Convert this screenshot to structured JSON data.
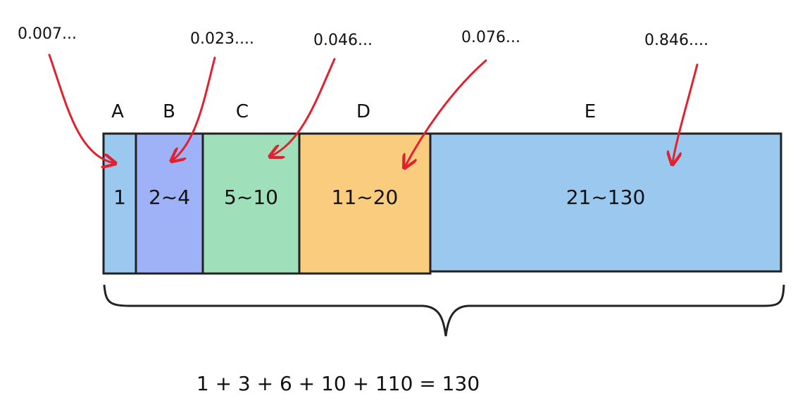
{
  "segments": [
    {
      "letter": "A",
      "range": "1",
      "value": "0.007...",
      "color": "#9bc8ee"
    },
    {
      "letter": "B",
      "range": "2~4",
      "value": "0.023....",
      "color": "#9fb2f8"
    },
    {
      "letter": "C",
      "range": "5~10",
      "value": "0.046...",
      "color": "#9fe0bb"
    },
    {
      "letter": "D",
      "range": "11~20",
      "value": "0.076...",
      "color": "#f9cc7e"
    },
    {
      "letter": "E",
      "range": "21~130",
      "value": "0.846....",
      "color": "#9bc8ee"
    }
  ],
  "equation": "1 + 3 + 6 + 10 + 110 = 130",
  "colors": {
    "arrow": "#e5202e",
    "stroke": "#222222"
  }
}
